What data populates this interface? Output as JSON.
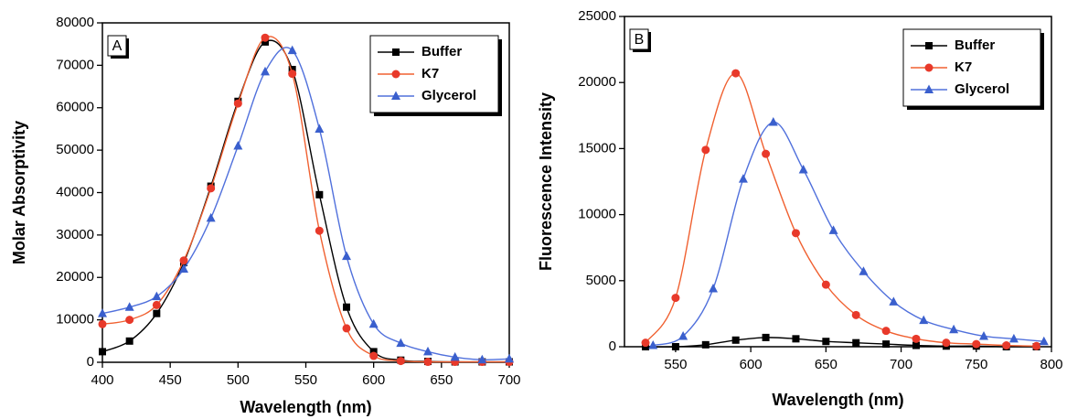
{
  "chart_data": [
    {
      "type": "line",
      "panel_label": "A",
      "xlabel": "Wavelength (nm)",
      "ylabel": "Molar Absorptivity",
      "x": [
        400,
        420,
        440,
        460,
        480,
        500,
        520,
        540,
        560,
        580,
        600,
        620,
        640,
        660,
        680,
        700
      ],
      "series": [
        {
          "name": "Buffer",
          "color": "#000000",
          "marker": "square",
          "values": [
            2500,
            5000,
            11500,
            23500,
            41500,
            61500,
            75500,
            69000,
            39500,
            13000,
            2500,
            500,
            200,
            100,
            100,
            100
          ]
        },
        {
          "name": "K7",
          "color": "#e8392a",
          "marker": "circle",
          "values": [
            9000,
            10000,
            13500,
            24000,
            41000,
            61000,
            76500,
            68000,
            31000,
            8000,
            1500,
            300,
            100,
            100,
            100,
            100
          ]
        },
        {
          "name": "Glycerol",
          "color": "#3a5fcd",
          "marker": "triangle",
          "values": [
            11500,
            13000,
            15500,
            22000,
            34000,
            51000,
            68500,
            73500,
            55000,
            25000,
            9000,
            4500,
            2500,
            1200,
            600,
            800
          ]
        }
      ],
      "xlim": [
        400,
        700
      ],
      "xticks": [
        400,
        450,
        500,
        550,
        600,
        650,
        700
      ],
      "ylim": [
        0,
        80000
      ],
      "yticks": [
        0,
        10000,
        20000,
        30000,
        40000,
        50000,
        60000,
        70000,
        80000
      ],
      "legend": "upper right"
    },
    {
      "type": "line",
      "panel_label": "B",
      "xlabel": "Wavelength (nm)",
      "ylabel": "Fluorescence Intensity",
      "series": [
        {
          "name": "Buffer",
          "color": "#000000",
          "marker": "square",
          "x": [
            530,
            550,
            570,
            590,
            610,
            630,
            650,
            670,
            690,
            710,
            730,
            750,
            770,
            790
          ],
          "values": [
            0,
            0,
            150,
            500,
            700,
            600,
            400,
            300,
            200,
            100,
            50,
            50,
            0,
            0
          ]
        },
        {
          "name": "K7",
          "color": "#e8392a",
          "marker": "circle",
          "x": [
            530,
            550,
            570,
            590,
            610,
            630,
            650,
            670,
            690,
            710,
            730,
            750,
            770,
            790
          ],
          "values": [
            300,
            3700,
            14900,
            20700,
            14600,
            8600,
            4700,
            2400,
            1200,
            600,
            300,
            200,
            100,
            50
          ]
        },
        {
          "name": "Glycerol",
          "color": "#3a5fcd",
          "marker": "triangle",
          "x": [
            535,
            555,
            575,
            595,
            615,
            635,
            655,
            675,
            695,
            715,
            735,
            755,
            775,
            795
          ],
          "values": [
            100,
            800,
            4400,
            12700,
            17000,
            13400,
            8800,
            5700,
            3400,
            2000,
            1300,
            800,
            600,
            400
          ]
        }
      ],
      "xlim": [
        516,
        800
      ],
      "xticks": [
        550,
        600,
        650,
        700,
        750,
        800
      ],
      "ylim": [
        0,
        25000
      ],
      "yticks": [
        0,
        5000,
        10000,
        15000,
        20000,
        25000
      ],
      "legend": "upper right"
    }
  ]
}
